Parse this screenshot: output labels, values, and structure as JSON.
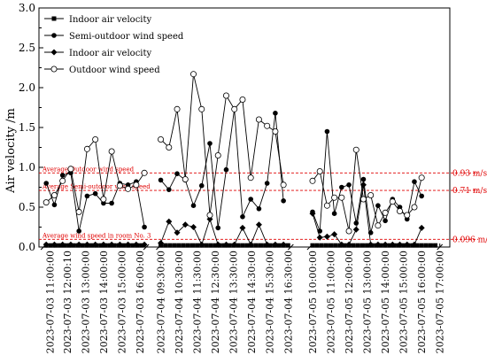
{
  "chart_data": {
    "type": "line",
    "title": "",
    "xlabel": "",
    "ylabel": "Air velocity /m",
    "ylim": [
      0,
      3.0
    ],
    "yticks": [
      "0.0",
      "0.5",
      "1.0",
      "1.5",
      "2.0",
      "2.5",
      "3.0"
    ],
    "grid": false,
    "legend_position": "top-left",
    "x_tick_labels": [
      "2023-07-03  11:00:00",
      "2023-07-03  12:00:10",
      "2023-07-03  13:00:00",
      "2023-07-03  14:00:00",
      "2023-07-03  15:00:00",
      "2023-07-03  16:00:00",
      "2023-07-04  09:30:00",
      "2023-07-04  10:30:00",
      "2023-07-04  11:30:00",
      "2023-07-04  12:30:00",
      "2023-07-04  13:30:00",
      "2023-07-04  14:30:00",
      "2023-07-04  15:30:00",
      "2023-07-04  16:30:00",
      "2023-07-05  10:00:00",
      "2023-07-05  11:00:00",
      "2023-07-05  12:00:00",
      "2023-07-05  13:00:00",
      "2023-07-05  14:00:00",
      "2023-07-05  15:00:00",
      "2023-07-05  16:00:00",
      "2023-07-05  17:00:00"
    ],
    "x_tick_positions": [
      0.4,
      2.3,
      4.3,
      6.3,
      8.3,
      10.3,
      12.6,
      14.6,
      16.6,
      18.6,
      20.6,
      22.6,
      24.6,
      26.6,
      29.3,
      31.3,
      33.3,
      35.3,
      37.3,
      39.3,
      41.3,
      43.3
    ],
    "segments": [
      [
        -0.3,
        11.0
      ],
      [
        12.4,
        26.9
      ],
      [
        29.0,
        43.3
      ]
    ],
    "series": [
      {
        "name": "Indoor air velocity",
        "marker": "square-filled",
        "values": [
          [
            [
              0.0,
              0.02
            ],
            [
              0.5,
              0.02
            ],
            [
              1.0,
              0.02
            ],
            [
              1.5,
              0.02
            ],
            [
              2.0,
              0.02
            ],
            [
              2.5,
              0.02
            ],
            [
              3.0,
              0.02
            ],
            [
              3.5,
              0.02
            ],
            [
              4.0,
              0.02
            ],
            [
              4.5,
              0.02
            ],
            [
              5.0,
              0.02
            ],
            [
              5.5,
              0.02
            ],
            [
              6.0,
              0.02
            ],
            [
              6.5,
              0.02
            ],
            [
              7.0,
              0.02
            ],
            [
              7.5,
              0.02
            ],
            [
              8.0,
              0.02
            ],
            [
              8.5,
              0.02
            ],
            [
              9.0,
              0.02
            ],
            [
              9.5,
              0.02
            ],
            [
              10.0,
              0.02
            ],
            [
              10.5,
              0.02
            ]
          ],
          [
            [
              12.6,
              0.02
            ],
            [
              13.1,
              0.02
            ],
            [
              13.6,
              0.02
            ],
            [
              14.1,
              0.02
            ],
            [
              14.6,
              0.02
            ],
            [
              15.1,
              0.02
            ],
            [
              15.6,
              0.02
            ],
            [
              16.1,
              0.02
            ],
            [
              16.6,
              0.02
            ],
            [
              17.1,
              0.02
            ],
            [
              17.6,
              0.02
            ],
            [
              18.1,
              0.02
            ],
            [
              18.6,
              0.02
            ],
            [
              19.1,
              0.02
            ],
            [
              19.6,
              0.02
            ],
            [
              20.1,
              0.02
            ],
            [
              20.6,
              0.02
            ],
            [
              21.1,
              0.02
            ],
            [
              21.6,
              0.02
            ],
            [
              22.1,
              0.02
            ],
            [
              22.6,
              0.02
            ],
            [
              23.1,
              0.02
            ],
            [
              23.6,
              0.02
            ],
            [
              24.1,
              0.02
            ],
            [
              24.6,
              0.02
            ],
            [
              25.1,
              0.02
            ],
            [
              25.6,
              0.02
            ],
            [
              26.1,
              0.02
            ],
            [
              26.6,
              0.02
            ]
          ],
          [
            [
              29.3,
              0.02
            ],
            [
              29.8,
              0.02
            ],
            [
              30.3,
              0.02
            ],
            [
              30.8,
              0.02
            ],
            [
              31.3,
              0.02
            ],
            [
              31.8,
              0.02
            ],
            [
              32.3,
              0.02
            ],
            [
              32.8,
              0.02
            ],
            [
              33.3,
              0.02
            ],
            [
              33.8,
              0.02
            ],
            [
              34.3,
              0.02
            ],
            [
              34.8,
              0.02
            ],
            [
              35.3,
              0.02
            ],
            [
              35.8,
              0.02
            ],
            [
              36.3,
              0.02
            ],
            [
              36.8,
              0.02
            ],
            [
              37.3,
              0.02
            ],
            [
              37.8,
              0.02
            ],
            [
              38.3,
              0.02
            ],
            [
              38.8,
              0.02
            ],
            [
              39.3,
              0.02
            ],
            [
              39.8,
              0.02
            ],
            [
              40.3,
              0.02
            ],
            [
              40.8,
              0.02
            ],
            [
              41.3,
              0.02
            ],
            [
              41.8,
              0.02
            ],
            [
              42.3,
              0.02
            ],
            [
              42.8,
              0.02
            ]
          ]
        ]
      },
      {
        "name": "Semi-outdoor wind speed",
        "marker": "circle-filled",
        "values": [
          [
            [
              0.0,
              0.8
            ],
            [
              0.9,
              0.53
            ],
            [
              1.8,
              0.9
            ],
            [
              2.7,
              0.93
            ],
            [
              3.6,
              0.2
            ],
            [
              4.5,
              0.64
            ],
            [
              5.4,
              0.67
            ],
            [
              6.3,
              0.55
            ],
            [
              7.2,
              0.55
            ],
            [
              8.1,
              0.8
            ],
            [
              9.0,
              0.78
            ],
            [
              9.9,
              0.82
            ],
            [
              10.8,
              0.25
            ]
          ],
          [
            [
              12.6,
              0.84
            ],
            [
              13.5,
              0.72
            ],
            [
              14.4,
              0.92
            ],
            [
              15.3,
              0.84
            ],
            [
              16.2,
              0.52
            ],
            [
              17.1,
              0.77
            ],
            [
              18.0,
              1.3
            ],
            [
              18.9,
              0.24
            ],
            [
              19.8,
              0.97
            ],
            [
              20.7,
              1.73
            ],
            [
              21.6,
              0.38
            ],
            [
              22.5,
              0.6
            ],
            [
              23.4,
              0.48
            ],
            [
              24.3,
              0.8
            ],
            [
              25.2,
              1.68
            ],
            [
              26.1,
              0.58
            ]
          ],
          [
            [
              29.3,
              0.44
            ],
            [
              30.1,
              0.2
            ],
            [
              30.9,
              1.45
            ],
            [
              31.7,
              0.42
            ],
            [
              32.5,
              0.75
            ],
            [
              33.3,
              0.78
            ],
            [
              34.1,
              0.3
            ],
            [
              34.9,
              0.85
            ],
            [
              35.7,
              0.18
            ],
            [
              36.5,
              0.52
            ],
            [
              37.3,
              0.33
            ],
            [
              38.1,
              0.6
            ],
            [
              38.9,
              0.5
            ],
            [
              39.7,
              0.35
            ],
            [
              40.5,
              0.82
            ],
            [
              41.3,
              0.64
            ]
          ]
        ]
      },
      {
        "name": "Indoor air velocity",
        "marker": "diamond-filled",
        "values": [
          [
            [
              0.0,
              0.03
            ],
            [
              0.9,
              0.03
            ],
            [
              1.8,
              0.03
            ],
            [
              2.7,
              0.03
            ],
            [
              3.6,
              0.03
            ],
            [
              4.5,
              0.03
            ],
            [
              5.4,
              0.03
            ],
            [
              6.3,
              0.03
            ],
            [
              7.2,
              0.03
            ],
            [
              8.1,
              0.03
            ],
            [
              9.0,
              0.03
            ],
            [
              9.9,
              0.03
            ],
            [
              10.8,
              0.03
            ]
          ],
          [
            [
              12.6,
              0.05
            ],
            [
              13.5,
              0.32
            ],
            [
              14.4,
              0.18
            ],
            [
              15.3,
              0.28
            ],
            [
              16.2,
              0.25
            ],
            [
              17.1,
              0.03
            ],
            [
              18.0,
              0.35
            ],
            [
              18.9,
              0.03
            ],
            [
              19.8,
              0.03
            ],
            [
              20.7,
              0.03
            ],
            [
              21.6,
              0.24
            ],
            [
              22.5,
              0.03
            ],
            [
              23.4,
              0.28
            ],
            [
              24.3,
              0.03
            ],
            [
              25.2,
              0.03
            ],
            [
              26.1,
              0.03
            ]
          ],
          [
            [
              29.3,
              0.42
            ],
            [
              30.1,
              0.12
            ],
            [
              30.9,
              0.13
            ],
            [
              31.7,
              0.16
            ],
            [
              32.5,
              0.03
            ],
            [
              33.3,
              0.03
            ],
            [
              34.1,
              0.22
            ],
            [
              34.9,
              0.78
            ],
            [
              35.7,
              0.03
            ],
            [
              36.5,
              0.03
            ],
            [
              37.3,
              0.03
            ],
            [
              38.1,
              0.03
            ],
            [
              38.9,
              0.03
            ],
            [
              39.7,
              0.03
            ],
            [
              40.5,
              0.03
            ],
            [
              41.3,
              0.24
            ]
          ]
        ]
      },
      {
        "name": "Outdoor wind speed",
        "marker": "circle-open",
        "values": [
          [
            [
              0.0,
              0.56
            ],
            [
              0.9,
              0.65
            ],
            [
              1.8,
              0.83
            ],
            [
              2.7,
              0.98
            ],
            [
              3.6,
              0.44
            ],
            [
              4.5,
              1.23
            ],
            [
              5.4,
              1.35
            ],
            [
              6.3,
              0.6
            ],
            [
              7.2,
              1.2
            ],
            [
              8.1,
              0.77
            ],
            [
              9.0,
              0.73
            ],
            [
              9.9,
              0.78
            ],
            [
              10.8,
              0.93
            ]
          ],
          [
            [
              12.6,
              1.35
            ],
            [
              13.5,
              1.25
            ],
            [
              14.4,
              1.73
            ],
            [
              15.3,
              0.85
            ],
            [
              16.2,
              2.17
            ],
            [
              17.1,
              1.73
            ],
            [
              18.0,
              0.4
            ],
            [
              18.9,
              1.15
            ],
            [
              19.8,
              1.9
            ],
            [
              20.7,
              1.73
            ],
            [
              21.6,
              1.85
            ],
            [
              22.5,
              0.87
            ],
            [
              23.4,
              1.6
            ],
            [
              24.3,
              1.52
            ],
            [
              25.2,
              1.45
            ],
            [
              26.1,
              0.78
            ]
          ],
          [
            [
              29.3,
              0.83
            ],
            [
              30.1,
              0.95
            ],
            [
              30.9,
              0.52
            ],
            [
              31.7,
              0.62
            ],
            [
              32.5,
              0.62
            ],
            [
              33.3,
              0.2
            ],
            [
              34.1,
              1.22
            ],
            [
              34.9,
              0.6
            ],
            [
              35.7,
              0.65
            ],
            [
              36.5,
              0.27
            ],
            [
              37.3,
              0.43
            ],
            [
              38.1,
              0.57
            ],
            [
              38.9,
              0.45
            ],
            [
              39.7,
              0.4
            ],
            [
              40.5,
              0.5
            ],
            [
              41.3,
              0.87
            ]
          ]
        ]
      }
    ],
    "reference_lines": [
      {
        "y": 0.93,
        "label": "Average Outdoor wind speed",
        "value_label": "0.93 m/s"
      },
      {
        "y": 0.71,
        "label": "Average Semi-outdoor wind speed",
        "value_label": "0.71 m/s"
      },
      {
        "y": 0.096,
        "label": "Average wind speed in room No. 3",
        "value_label": "0.096 m/s"
      }
    ],
    "reference_color": "#e00000"
  }
}
